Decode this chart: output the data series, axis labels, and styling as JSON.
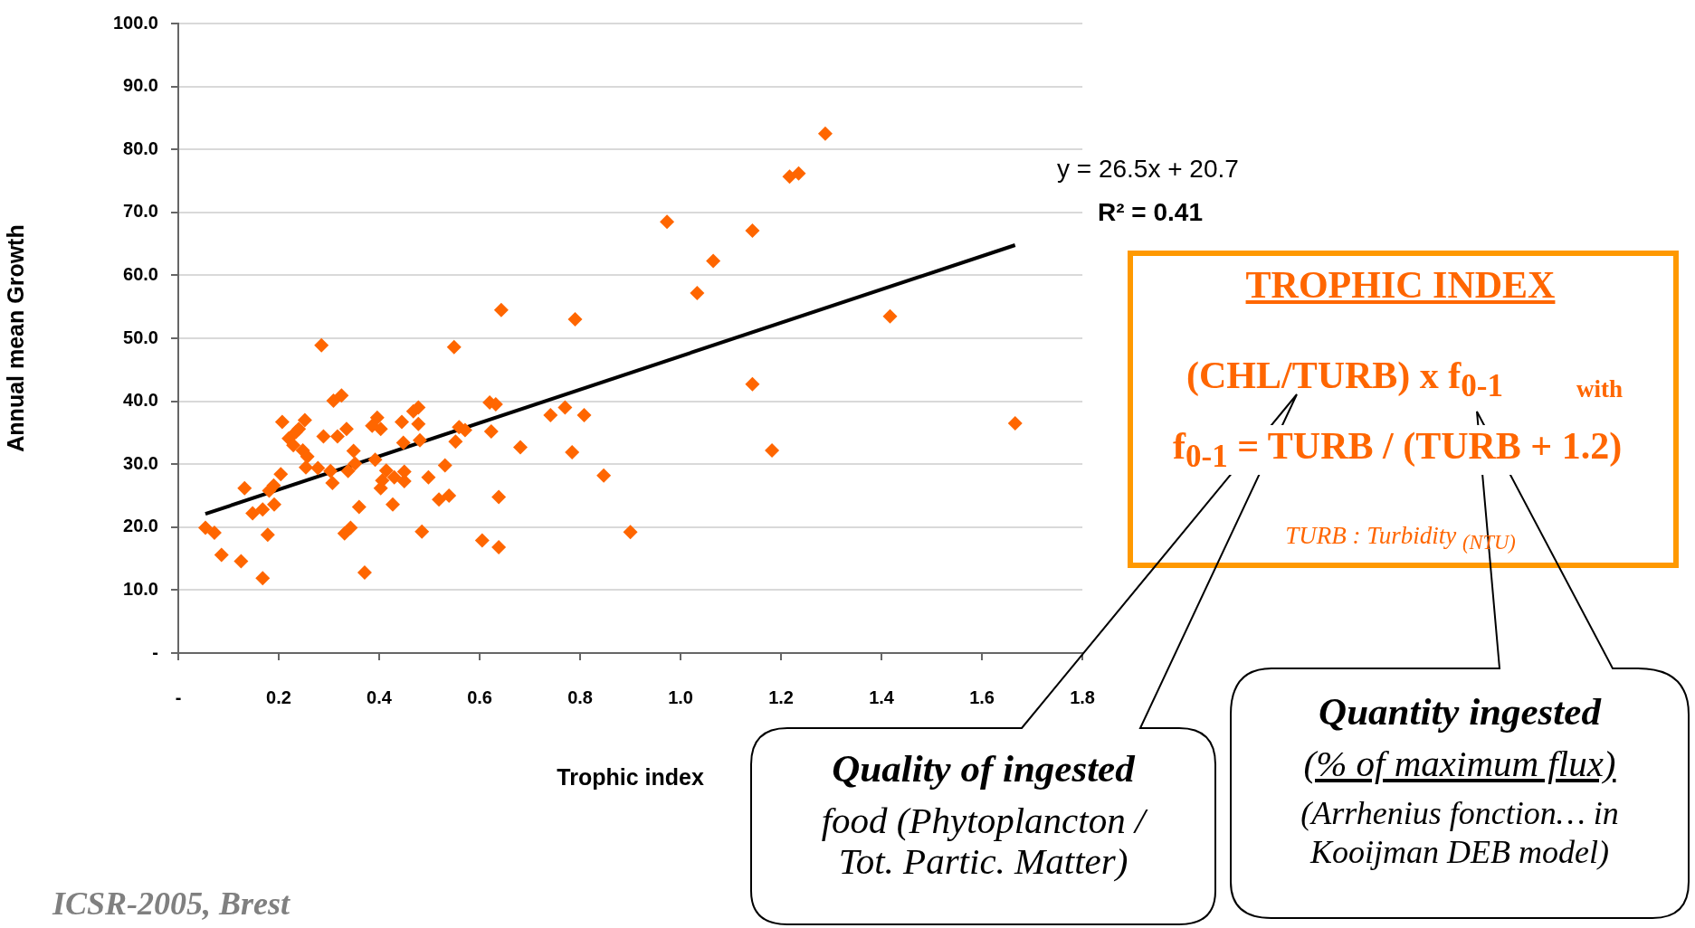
{
  "chart_data": {
    "type": "scatter",
    "xlabel": "Trophic index",
    "ylabel": "Annual mean Growth",
    "xlim": [
      0,
      1.8
    ],
    "xticks": [
      {
        "value": 0,
        "label": "-"
      },
      0.2,
      0.4,
      0.6,
      0.8,
      {
        "value": 1,
        "label": "1.0"
      },
      1.2,
      1.4,
      1.6,
      1.8
    ],
    "ylim": [
      0,
      100
    ],
    "yticks": [
      {
        "value": 0,
        "label": "-"
      },
      {
        "value": 10,
        "label": "10.0"
      },
      {
        "value": 20,
        "label": "20.0"
      },
      {
        "value": 30,
        "label": "30.0"
      },
      {
        "value": 40,
        "label": "40.0"
      },
      {
        "value": 50,
        "label": "50.0"
      },
      {
        "value": 60,
        "label": "60.0"
      },
      {
        "value": 70,
        "label": "70.0"
      },
      {
        "value": 80,
        "label": "80.0"
      },
      {
        "value": 90,
        "label": "90.0"
      },
      {
        "value": 100,
        "label": "100.0"
      }
    ],
    "grid": "y",
    "legend": false,
    "marker": "diamond",
    "series": [
      {
        "type": "scatter",
        "color": "#ff6600",
        "x": [
          0.054,
          0.072,
          0.086,
          0.125,
          0.132,
          0.148,
          0.168,
          0.168,
          0.178,
          0.181,
          0.19,
          0.191,
          0.204,
          0.207,
          0.22,
          0.229,
          0.234,
          0.24,
          0.252,
          0.248,
          0.257,
          0.254,
          0.278,
          0.285,
          0.289,
          0.303,
          0.307,
          0.309,
          0.325,
          0.317,
          0.335,
          0.338,
          0.349,
          0.352,
          0.331,
          0.343,
          0.36,
          0.371,
          0.392,
          0.386,
          0.396,
          0.403,
          0.406,
          0.403,
          0.414,
          0.427,
          0.43,
          0.445,
          0.448,
          0.45,
          0.45,
          0.468,
          0.478,
          0.478,
          0.481,
          0.485,
          0.498,
          0.519,
          0.531,
          0.539,
          0.549,
          0.552,
          0.559,
          0.571,
          0.605,
          0.62,
          0.632,
          0.623,
          0.638,
          0.638,
          0.643,
          0.681,
          0.741,
          0.77,
          0.79,
          0.784,
          0.808,
          0.847,
          0.9,
          0.973,
          1.033,
          1.065,
          1.143,
          1.217,
          1.235,
          1.288,
          1.143,
          1.182,
          1.417,
          1.666
        ],
        "values": [
          19.9,
          19.1,
          15.6,
          14.6,
          26.2,
          22.2,
          22.8,
          11.9,
          18.8,
          25.8,
          26.6,
          23.6,
          28.4,
          36.7,
          34.1,
          33.0,
          35.1,
          35.6,
          37.0,
          32.2,
          31.2,
          29.5,
          29.4,
          48.9,
          34.4,
          28.9,
          27.0,
          40.1,
          40.9,
          34.4,
          35.6,
          28.9,
          32.1,
          30.1,
          19.0,
          19.9,
          23.2,
          12.8,
          30.7,
          36.1,
          37.4,
          35.6,
          27.4,
          26.2,
          29.0,
          23.6,
          27.9,
          36.7,
          33.4,
          28.8,
          27.3,
          38.4,
          39.0,
          36.4,
          33.8,
          19.3,
          27.9,
          24.4,
          29.8,
          25.0,
          48.6,
          33.6,
          35.9,
          35.4,
          17.9,
          39.8,
          39.5,
          35.2,
          24.8,
          16.8,
          54.5,
          32.7,
          37.8,
          39.0,
          53.0,
          31.9,
          37.8,
          28.2,
          19.2,
          68.5,
          57.2,
          62.3,
          67.1,
          75.7,
          76.2,
          82.5,
          42.7,
          32.2,
          53.5,
          36.5
        ]
      },
      {
        "type": "line",
        "color": "#000000",
        "marker": "none",
        "x": [
          0.054,
          1.666
        ],
        "values": [
          22.1,
          64.8
        ]
      }
    ],
    "annotations": [
      "y = 26.5x + 20.7",
      "R² = 0.41",
      "TROPHIC INDEX",
      "(CHL/TURB) x f$_{0-1}$",
      "with",
      "f$_{0-1}$ = TURB / (TURB + 1.2)",
      "TURB : Turbidity $_{(NTU)}$",
      "Quality of ingested",
      "food (Phytoplancton / Tot. Partic. Matter)",
      "Quantity ingested",
      "(% of maximum flux)",
      "(Arrhenius fonction… in Kooijman DEB model)",
      "ICSR-2005, Brest"
    ]
  }
}
